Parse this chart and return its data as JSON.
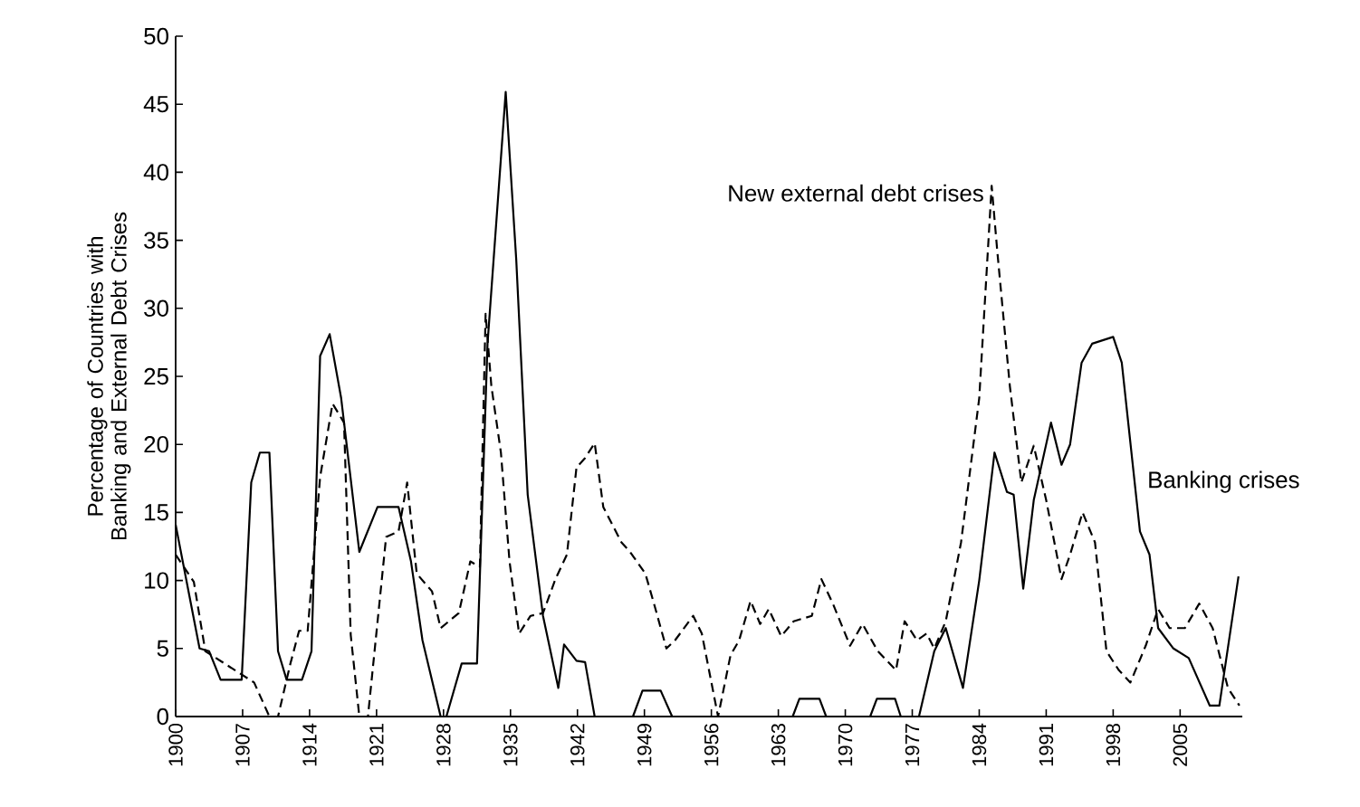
{
  "chart_data": {
    "type": "line",
    "ylabel": "Percentage of Countries with Banking and External Debt Crises",
    "xlim": [
      1900,
      2011.5
    ],
    "xticks": [
      1900,
      1907,
      1914,
      1921,
      1928,
      1935,
      1942,
      1949,
      1956,
      1963,
      1970,
      1977,
      1984,
      1991,
      1998,
      2005
    ],
    "ylim": [
      0,
      50
    ],
    "yticks": [
      0,
      5,
      10,
      15,
      20,
      25,
      30,
      35,
      40,
      45,
      50
    ],
    "grid": false,
    "legend": false,
    "marker": "none",
    "series": [
      {
        "name": "Banking crises",
        "color": "#000000",
        "line_style": "solid",
        "x": [
          1900,
          1900.6,
          1902.5,
          1903.5,
          1904.7,
          1906.9,
          1907.9,
          1908.8,
          1909.8,
          1910.7,
          1911.6,
          1913.2,
          1914.2,
          1915.1,
          1916.1,
          1917.3,
          1919.2,
          1921.1,
          1923.3,
          1924.6,
          1925.8,
          1927.7,
          1928.3,
          1929.9,
          1931.5,
          1932.6,
          1934.5,
          1935.6,
          1936.8,
          1938.4,
          1940,
          1940.6,
          1941.9,
          1942.8,
          1943.8,
          1947.8,
          1948.8,
          1950.7,
          1951.9,
          1964.5,
          1965.2,
          1967.3,
          1968,
          1972.6,
          1973.3,
          1975.2,
          1975.8,
          1977.7,
          1979.3,
          1980.5,
          1982.3,
          1984,
          1985.6,
          1986.9,
          1987.6,
          1988.6,
          1989.7,
          1991.5,
          1992.6,
          1993.5,
          1994.7,
          1995.8,
          1998,
          1998.9,
          2000.8,
          2001.8,
          2002.7,
          2004.3,
          2005.9,
          2008.1,
          2009.1,
          2011.1
        ],
        "values": [
          14.1,
          11.9,
          5,
          4.8,
          2.7,
          2.7,
          17.2,
          19.4,
          19.4,
          4.8,
          2.7,
          2.7,
          4.8,
          26.5,
          28.1,
          23.4,
          12.1,
          15.4,
          15.4,
          11.4,
          5.6,
          0,
          0,
          3.9,
          3.9,
          27.4,
          45.9,
          33.6,
          16.3,
          7.4,
          2.1,
          5.3,
          4.1,
          4,
          0,
          0,
          1.9,
          1.9,
          0,
          0,
          1.3,
          1.3,
          0,
          0,
          1.3,
          1.3,
          0,
          0,
          4.8,
          6.5,
          2.1,
          10,
          19.4,
          16.5,
          16.3,
          9.4,
          15.9,
          21.6,
          18.5,
          20,
          26,
          27.4,
          27.9,
          26,
          13.6,
          11.9,
          6.5,
          5,
          4.3,
          0.8,
          0.8,
          10.3
        ]
      },
      {
        "name": "New external debt crises",
        "color": "#000000",
        "line_style": "dashed",
        "x": [
          1900,
          1901.9,
          1903.1,
          1908.2,
          1909.8,
          1910.7,
          1912,
          1912.9,
          1913.8,
          1915.1,
          1916.4,
          1917.6,
          1918.3,
          1919.2,
          1920.1,
          1922,
          1923.3,
          1924.2,
          1925.2,
          1926.8,
          1927.7,
          1929.6,
          1930.8,
          1931.8,
          1932.4,
          1933,
          1934,
          1934.9,
          1935.9,
          1937.1,
          1938.4,
          1939.7,
          1940.9,
          1941.9,
          1942.8,
          1943.8,
          1944.7,
          1946.6,
          1947.5,
          1949.1,
          1950,
          1951.3,
          1952.2,
          1954.1,
          1955,
          1956.7,
          1958,
          1958.9,
          1960.1,
          1961.1,
          1962,
          1963.3,
          1964.6,
          1966.5,
          1967.5,
          1968.7,
          1970.5,
          1971.8,
          1973.4,
          1975.3,
          1976.2,
          1977.5,
          1978.5,
          1979.3,
          1980.5,
          1982.1,
          1984,
          1985.3,
          1985.9,
          1987.2,
          1988.4,
          1989.7,
          1991,
          1992.6,
          1993.5,
          1994.8,
          1996.1,
          1997.3,
          1998.6,
          1999.8,
          2001.4,
          2002.7,
          2003.9,
          2005.5,
          2007,
          2008.4,
          2010,
          2011.2
        ],
        "values": [
          11.9,
          9.9,
          4.8,
          2.5,
          0,
          0,
          3.9,
          6.3,
          6.3,
          17.6,
          23,
          21.6,
          6,
          0,
          0,
          13.2,
          13.6,
          17.2,
          10.5,
          9.2,
          6.5,
          7.6,
          11.4,
          11,
          29.6,
          24.3,
          19.4,
          11.4,
          6.1,
          7.4,
          7.6,
          10.1,
          11.9,
          18.3,
          19,
          20.1,
          15.4,
          12.8,
          12.1,
          10.5,
          8.3,
          5,
          5.6,
          7.4,
          6.1,
          0,
          4.5,
          5.6,
          8.5,
          6.8,
          7.9,
          5.9,
          7,
          7.4,
          10.1,
          8.3,
          5.2,
          6.8,
          4.8,
          3.4,
          7,
          5.6,
          6.1,
          5,
          7,
          12.8,
          23.4,
          39,
          34.1,
          24.3,
          17.2,
          19.9,
          15.9,
          10.1,
          11.9,
          15,
          12.8,
          4.8,
          3.4,
          2.5,
          5.2,
          7.9,
          6.5,
          6.5,
          8.3,
          6.5,
          2.1,
          0.8
        ]
      }
    ]
  }
}
